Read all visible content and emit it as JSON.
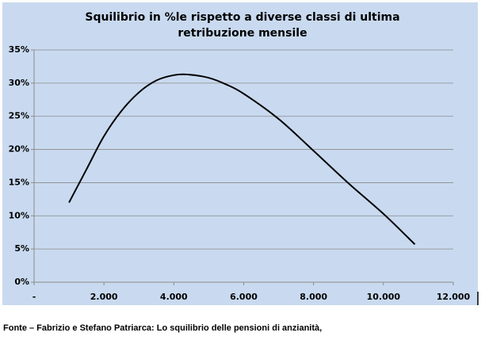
{
  "chart_data": {
    "type": "line",
    "title": [
      "Squilibrio in %le rispetto a diverse classi di ultima",
      "retribuzione mensile"
    ],
    "x": [
      1000,
      1500,
      2000,
      2500,
      3000,
      3500,
      4000,
      4400,
      5000,
      5500,
      6000,
      7000,
      8000,
      9000,
      10000,
      10900
    ],
    "series": [
      {
        "color": "#000000",
        "values": [
          12,
          17,
          22,
          25.8,
          28.6,
          30.4,
          31.2,
          31.3,
          30.8,
          29.8,
          28.4,
          24.6,
          19.8,
          14.9,
          10.3,
          5.7
        ]
      }
    ],
    "xlim": [
      0,
      12000
    ],
    "xticks": [
      {
        "value": 0,
        "label": "-"
      },
      {
        "value": 2000,
        "label": "2.000"
      },
      {
        "value": 4000,
        "label": "4.000"
      },
      {
        "value": 6000,
        "label": "6.000"
      },
      {
        "value": 8000,
        "label": "8.000"
      },
      {
        "value": 10000,
        "label": "10.000"
      },
      {
        "value": 12000,
        "label": "12.000"
      }
    ],
    "ylim": [
      0,
      35
    ],
    "yticks": [
      {
        "value": 0,
        "label": "0%"
      },
      {
        "value": 5,
        "label": "5%"
      },
      {
        "value": 10,
        "label": "10%"
      },
      {
        "value": 15,
        "label": "15%"
      },
      {
        "value": 20,
        "label": "20%"
      },
      {
        "value": 25,
        "label": "25%"
      },
      {
        "value": 30,
        "label": "30%"
      },
      {
        "value": 35,
        "label": "35%"
      }
    ],
    "grid": true,
    "background": "#c9daf0",
    "source": "Fonte –  Fabrizio e Stefano Patriarca: Lo squilibrio delle pensioni di anzianità,"
  }
}
